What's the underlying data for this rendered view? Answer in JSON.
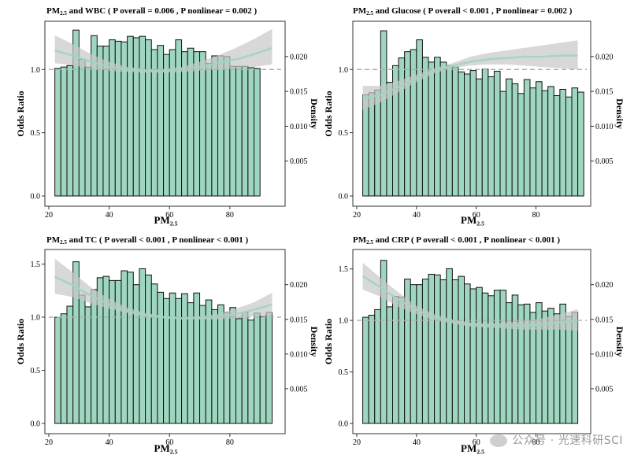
{
  "axis_common": {
    "xlabel_main": "PM",
    "xlabel_sub": "2.5",
    "ylabel_left": "Odds Ratio",
    "ylabel_right": "Density",
    "x_ticks": [
      20,
      40,
      60,
      80
    ],
    "density_ticks": [
      0.005,
      0.01,
      0.015,
      0.02
    ],
    "density_tick_labels": [
      "0.005",
      "0.010",
      "0.015",
      "0.020"
    ],
    "hist_bins_start": 22,
    "hist_bins_width": 2
  },
  "colors": {
    "bar_fill": "#9fd6c0",
    "bar_stroke": "#111111",
    "ci_band": "#c8c8c8",
    "spline": "#9fd6c0",
    "reference": "#b0b0b0"
  },
  "watermark": {
    "text": "公众号 · 光速科研SCI"
  },
  "chart_data": [
    {
      "type": "bar",
      "title_parts": [
        "PM",
        "2.5",
        " and WBC ( P overall = 0.006 , P nonlinear = 0.002 )"
      ],
      "xlim": [
        20,
        97
      ],
      "ylim": [
        0,
        1.35
      ],
      "y_ticks": [
        0,
        0.5,
        1.0
      ],
      "y_tick_labels": [
        "0.0",
        "0.5",
        "1.0"
      ],
      "density_lim": [
        0,
        0.0245
      ],
      "bar_values": [
        0.0183,
        0.0185,
        0.0187,
        0.0238,
        0.0196,
        0.0185,
        0.023,
        0.0215,
        0.0215,
        0.0224,
        0.0222,
        0.0221,
        0.0229,
        0.0227,
        0.0229,
        0.0224,
        0.021,
        0.0216,
        0.0203,
        0.021,
        0.0224,
        0.0207,
        0.0212,
        0.0207,
        0.0207,
        0.019,
        0.0201,
        0.0201,
        0.02,
        0.0186,
        0.0186,
        0.0186,
        0.0184,
        0.0183
      ],
      "spline_x": [
        22,
        28,
        34,
        40,
        46,
        52,
        58,
        64,
        70,
        76,
        82,
        88,
        94
      ],
      "spline_y": [
        1.15,
        1.11,
        1.06,
        1.02,
        1.0,
        0.99,
        0.99,
        1.0,
        1.02,
        1.05,
        1.08,
        1.12,
        1.17
      ],
      "ci_lower": [
        1.05,
        1.03,
        1.01,
        0.99,
        0.98,
        0.975,
        0.975,
        0.98,
        0.99,
        1.0,
        1.01,
        1.02,
        1.04
      ],
      "ci_upper": [
        1.27,
        1.2,
        1.12,
        1.06,
        1.02,
        1.005,
        1.005,
        1.02,
        1.06,
        1.11,
        1.17,
        1.24,
        1.32
      ]
    },
    {
      "type": "bar",
      "title_parts": [
        "PM",
        "2.5",
        " and Glucose ( P overall < 0.001 , P nonlinear = 0.002 )"
      ],
      "xlim": [
        20,
        97
      ],
      "ylim": [
        0,
        1.35
      ],
      "y_ticks": [
        0,
        0.5,
        1.0
      ],
      "y_tick_labels": [
        "0.0",
        "0.5",
        "1.0"
      ],
      "density_lim": [
        0,
        0.0245
      ],
      "bar_values": [
        0.0145,
        0.0148,
        0.0152,
        0.0237,
        0.0163,
        0.0187,
        0.0198,
        0.0207,
        0.021,
        0.0224,
        0.0199,
        0.0192,
        0.0199,
        0.0192,
        0.0187,
        0.0185,
        0.0178,
        0.0175,
        0.018,
        0.0168,
        0.0182,
        0.0171,
        0.0179,
        0.015,
        0.0168,
        0.0161,
        0.0147,
        0.0167,
        0.0155,
        0.0164,
        0.0151,
        0.0157,
        0.0144,
        0.0153,
        0.0142,
        0.0155,
        0.0149
      ],
      "spline_x": [
        22,
        28,
        34,
        40,
        46,
        52,
        58,
        64,
        70,
        76,
        82,
        88,
        94
      ],
      "spline_y": [
        0.77,
        0.8,
        0.86,
        0.93,
        0.99,
        1.03,
        1.06,
        1.08,
        1.09,
        1.1,
        1.1,
        1.11,
        1.11
      ],
      "ci_lower": [
        0.68,
        0.74,
        0.82,
        0.9,
        0.97,
        1.01,
        1.03,
        1.04,
        1.04,
        1.03,
        1.02,
        1.01,
        1.0
      ],
      "ci_upper": [
        0.87,
        0.87,
        0.91,
        0.96,
        1.01,
        1.05,
        1.1,
        1.13,
        1.15,
        1.17,
        1.19,
        1.21,
        1.23
      ]
    },
    {
      "type": "bar",
      "title_parts": [
        "PM",
        "2.5",
        " and TC ( P overall < 0.001 , P nonlinear < 0.001 )"
      ],
      "xlim": [
        20,
        97
      ],
      "ylim": [
        0,
        1.6
      ],
      "y_ticks": [
        0,
        0.5,
        1.0,
        1.5
      ],
      "y_tick_labels": [
        "0.0",
        "0.5",
        "1.0",
        "1.5"
      ],
      "density_lim": [
        0,
        0.0245
      ],
      "bar_values": [
        0.0153,
        0.0158,
        0.0169,
        0.0233,
        0.0185,
        0.0168,
        0.0193,
        0.021,
        0.0212,
        0.0206,
        0.0206,
        0.022,
        0.0218,
        0.02,
        0.0223,
        0.0214,
        0.0201,
        0.0189,
        0.018,
        0.0188,
        0.018,
        0.0187,
        0.0174,
        0.0188,
        0.017,
        0.0178,
        0.0164,
        0.0171,
        0.016,
        0.0167,
        0.0151,
        0.016,
        0.0149,
        0.0159,
        0.0154,
        0.016
      ],
      "spline_x": [
        22,
        28,
        34,
        40,
        46,
        52,
        58,
        64,
        70,
        76,
        82,
        88,
        94
      ],
      "spline_y": [
        1.38,
        1.3,
        1.2,
        1.12,
        1.06,
        1.02,
        1.0,
        0.99,
        0.99,
        1.0,
        1.03,
        1.07,
        1.12
      ],
      "ci_lower": [
        1.22,
        1.19,
        1.13,
        1.08,
        1.04,
        1.0,
        0.99,
        0.98,
        0.98,
        0.98,
        0.99,
        1.01,
        1.02
      ],
      "ci_upper": [
        1.55,
        1.42,
        1.28,
        1.17,
        1.09,
        1.04,
        1.01,
        1.0,
        1.01,
        1.03,
        1.08,
        1.14,
        1.23
      ]
    },
    {
      "type": "bar",
      "title_parts": [
        "PM",
        "2.5",
        " and CRP ( P overall < 0.001 , P nonlinear < 0.001 )"
      ],
      "xlim": [
        20,
        97
      ],
      "ylim": [
        0,
        1.65
      ],
      "y_ticks": [
        0,
        0.5,
        1.0,
        1.5
      ],
      "y_tick_labels": [
        "0.0",
        "0.5",
        "1.0",
        "1.5"
      ],
      "density_lim": [
        0,
        0.0245
      ],
      "bar_values": [
        0.0153,
        0.0156,
        0.0164,
        0.0235,
        0.0168,
        0.0183,
        0.0182,
        0.0208,
        0.02,
        0.02,
        0.0208,
        0.0215,
        0.0214,
        0.0207,
        0.0223,
        0.0207,
        0.0212,
        0.0201,
        0.0194,
        0.0196,
        0.0188,
        0.0184,
        0.0192,
        0.0192,
        0.0174,
        0.0185,
        0.0171,
        0.0172,
        0.016,
        0.0174,
        0.0162,
        0.0166,
        0.0158,
        0.0172,
        0.0154,
        0.016
      ],
      "spline_x": [
        22,
        28,
        34,
        40,
        46,
        52,
        58,
        64,
        70,
        76,
        82,
        88,
        94
      ],
      "spline_y": [
        1.43,
        1.32,
        1.2,
        1.1,
        1.03,
        0.99,
        0.96,
        0.95,
        0.95,
        0.95,
        0.96,
        0.98,
        1.0
      ],
      "ci_lower": [
        1.3,
        1.23,
        1.13,
        1.06,
        1.0,
        0.97,
        0.94,
        0.93,
        0.92,
        0.91,
        0.91,
        0.91,
        0.9
      ],
      "ci_upper": [
        1.56,
        1.41,
        1.27,
        1.14,
        1.06,
        1.01,
        0.98,
        0.97,
        0.98,
        0.99,
        1.02,
        1.06,
        1.11
      ]
    }
  ]
}
